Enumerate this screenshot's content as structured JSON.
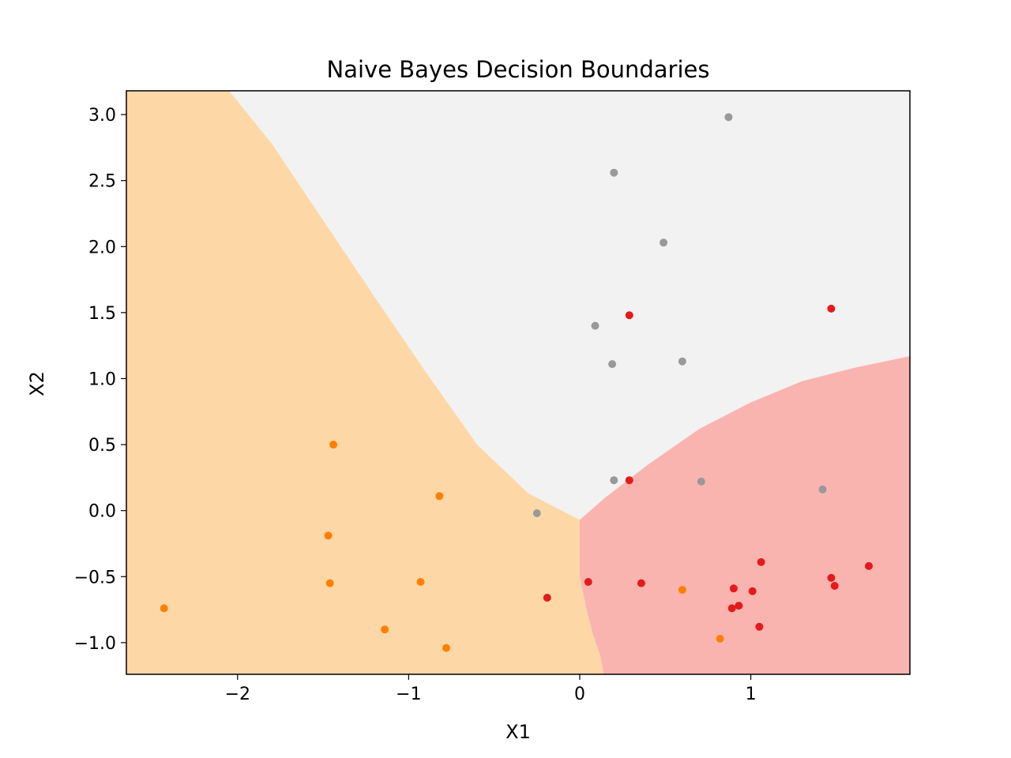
{
  "chart_data": {
    "type": "scatter",
    "title": "Naive Bayes Decision Boundaries",
    "xlabel": "X1",
    "ylabel": "X2",
    "xlim": [
      -2.65,
      1.93
    ],
    "ylim": [
      -1.24,
      3.18
    ],
    "xticks": [
      -2,
      -1,
      0,
      1
    ],
    "xtick_labels": [
      "−2",
      "−1",
      "0",
      "1"
    ],
    "yticks": [
      -1.0,
      -0.5,
      0.0,
      0.5,
      1.0,
      1.5,
      2.0,
      2.5,
      3.0
    ],
    "ytick_labels": [
      "−1.0",
      "−0.5",
      "0.0",
      "0.5",
      "1.0",
      "1.5",
      "2.0",
      "2.5",
      "3.0"
    ],
    "grid": false,
    "legend": "none",
    "regions": [
      {
        "color": "#fdd8a6"
      },
      {
        "color": "#f2f2f2"
      },
      {
        "color": "#fab4b0"
      }
    ],
    "boundaries": {
      "orange_gray": [
        [
          -2.05,
          3.18
        ],
        [
          -1.8,
          2.78
        ],
        [
          -1.5,
          2.2
        ],
        [
          -1.2,
          1.62
        ],
        [
          -0.9,
          1.05
        ],
        [
          -0.6,
          0.5
        ],
        [
          -0.3,
          0.13
        ],
        [
          0.0,
          -0.07
        ]
      ],
      "orange_red": [
        [
          0.0,
          -0.07
        ],
        [
          0.0,
          -0.5
        ],
        [
          0.04,
          -0.75
        ],
        [
          0.08,
          -0.95
        ],
        [
          0.12,
          -1.1
        ],
        [
          0.14,
          -1.24
        ]
      ],
      "gray_red": [
        [
          0.0,
          -0.07
        ],
        [
          0.15,
          0.1
        ],
        [
          0.4,
          0.35
        ],
        [
          0.7,
          0.62
        ],
        [
          1.0,
          0.82
        ],
        [
          1.3,
          0.98
        ],
        [
          1.6,
          1.08
        ],
        [
          1.93,
          1.17
        ]
      ]
    },
    "series": [
      {
        "color": "#999999",
        "points": [
          [
            0.87,
            2.98
          ],
          [
            0.2,
            2.56
          ],
          [
            0.49,
            2.03
          ],
          [
            0.09,
            1.4
          ],
          [
            0.19,
            1.11
          ],
          [
            0.6,
            1.13
          ],
          [
            0.2,
            0.23
          ],
          [
            0.71,
            0.22
          ],
          [
            1.42,
            0.16
          ],
          [
            -0.25,
            -0.02
          ]
        ]
      },
      {
        "color": "#ff7f00",
        "points": [
          [
            -1.44,
            0.5
          ],
          [
            -0.82,
            0.11
          ],
          [
            -1.47,
            -0.19
          ],
          [
            -1.46,
            -0.55
          ],
          [
            -0.93,
            -0.54
          ],
          [
            -2.43,
            -0.74
          ],
          [
            -1.14,
            -0.9
          ],
          [
            -0.78,
            -1.04
          ],
          [
            0.6,
            -0.6
          ],
          [
            0.82,
            -0.97
          ]
        ]
      },
      {
        "color": "#e41a1c",
        "points": [
          [
            1.47,
            1.53
          ],
          [
            0.29,
            1.48
          ],
          [
            0.29,
            0.23
          ],
          [
            -0.19,
            -0.66
          ],
          [
            0.05,
            -0.54
          ],
          [
            0.36,
            -0.55
          ],
          [
            1.06,
            -0.39
          ],
          [
            1.69,
            -0.42
          ],
          [
            1.47,
            -0.51
          ],
          [
            1.49,
            -0.57
          ],
          [
            0.9,
            -0.59
          ],
          [
            1.01,
            -0.61
          ],
          [
            0.93,
            -0.72
          ],
          [
            0.89,
            -0.74
          ],
          [
            1.05,
            -0.88
          ]
        ]
      }
    ]
  }
}
